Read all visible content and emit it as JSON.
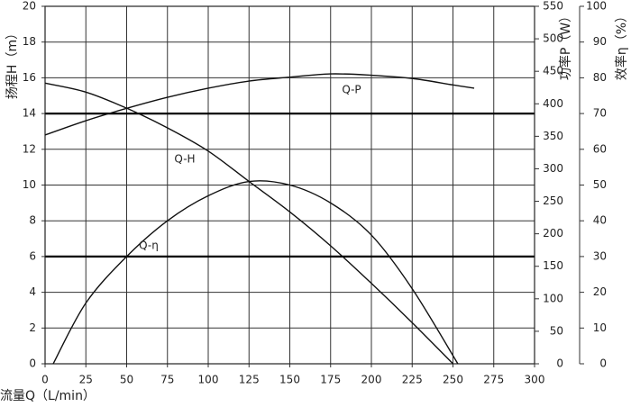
{
  "chart_data": {
    "type": "line",
    "x_label": "流量Q（L/min）",
    "y_label": "扬程H（m）",
    "y2_label": "功率P（W）",
    "y3_label": "效率η（%）",
    "xlim": [
      0,
      300
    ],
    "xticks": [
      0,
      25,
      50,
      75,
      100,
      125,
      150,
      175,
      200,
      225,
      250,
      275,
      300
    ],
    "ylim": [
      0,
      20
    ],
    "yticks": [
      0,
      2,
      4,
      6,
      8,
      10,
      12,
      14,
      16,
      18,
      20
    ],
    "y2lim": [
      0,
      550
    ],
    "y2ticks": [
      0,
      50,
      100,
      150,
      200,
      250,
      300,
      350,
      400,
      450,
      500,
      550
    ],
    "y3lim": [
      0,
      100
    ],
    "y3ticks": [
      0,
      10,
      20,
      30,
      40,
      50,
      60,
      70,
      80,
      90,
      100
    ],
    "grid": true,
    "emphasized_yticks": [
      6,
      14
    ],
    "series": [
      {
        "name": "Q-H",
        "color": "#111111",
        "x": [
          0,
          25,
          50,
          75,
          100,
          125,
          150,
          175,
          200,
          225,
          250
        ],
        "values": [
          15.7,
          15.2,
          14.3,
          13.2,
          11.9,
          10.2,
          8.5,
          6.6,
          4.5,
          2.3,
          0
        ]
      },
      {
        "name": "Q-P",
        "color": "#111111",
        "axis": "y2",
        "x": [
          0,
          25,
          50,
          75,
          100,
          125,
          150,
          175,
          200,
          225,
          250,
          263
        ],
        "values": [
          352,
          374,
          393,
          410,
          424,
          435,
          441,
          446,
          444,
          439,
          429,
          424
        ]
      },
      {
        "name": "Q-η",
        "color": "#111111",
        "axis": "y3",
        "x": [
          5,
          25,
          50,
          75,
          100,
          125,
          150,
          175,
          200,
          225,
          253
        ],
        "values": [
          0,
          17,
          30,
          40,
          47,
          51,
          50,
          45,
          36,
          21,
          0
        ]
      }
    ]
  }
}
